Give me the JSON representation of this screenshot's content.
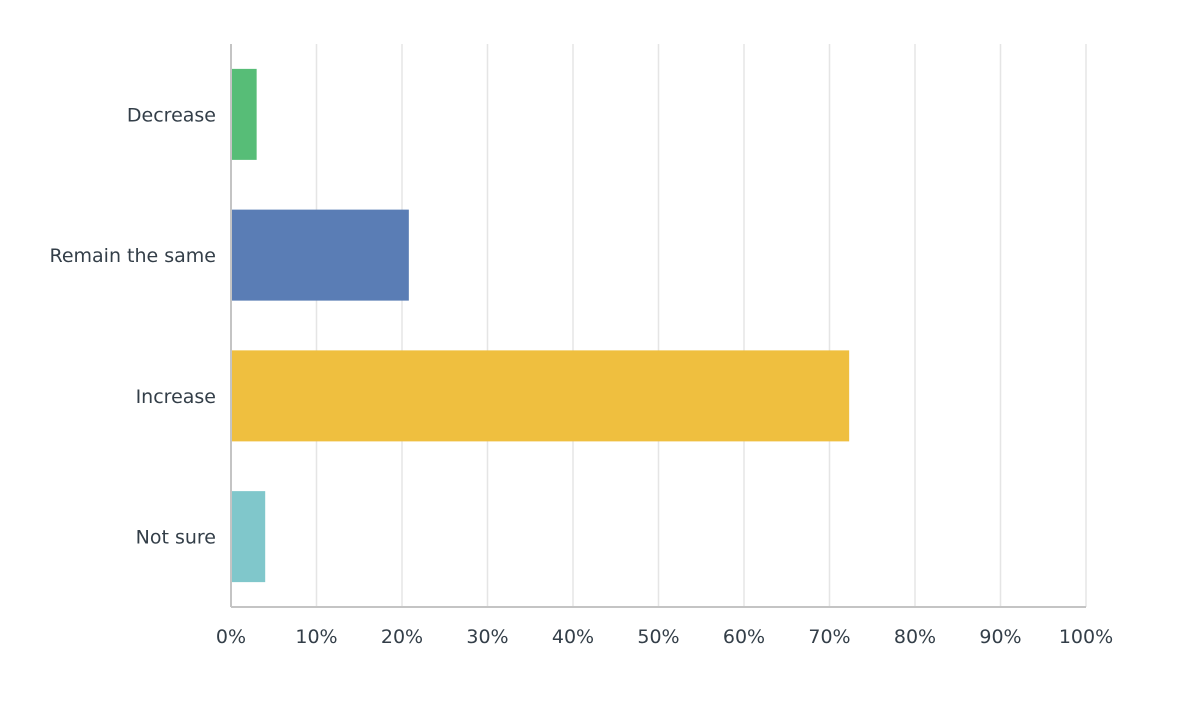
{
  "chart_data": {
    "type": "bar",
    "orientation": "horizontal",
    "categories": [
      "Decrease",
      "Remain the same",
      "Increase",
      "Not sure"
    ],
    "values": [
      3.0,
      20.8,
      72.3,
      4.0
    ],
    "value_unit": "%",
    "colors": [
      "#57bd77",
      "#5a7db5",
      "#efbf3f",
      "#80c7cb"
    ],
    "xlim": [
      0,
      100
    ],
    "xticks": [
      0,
      10,
      20,
      30,
      40,
      50,
      60,
      70,
      80,
      90,
      100
    ],
    "xtick_labels": [
      "0%",
      "10%",
      "20%",
      "30%",
      "40%",
      "50%",
      "60%",
      "70%",
      "80%",
      "90%",
      "100%"
    ],
    "grid": true,
    "title": "",
    "xlabel": "",
    "ylabel": ""
  }
}
